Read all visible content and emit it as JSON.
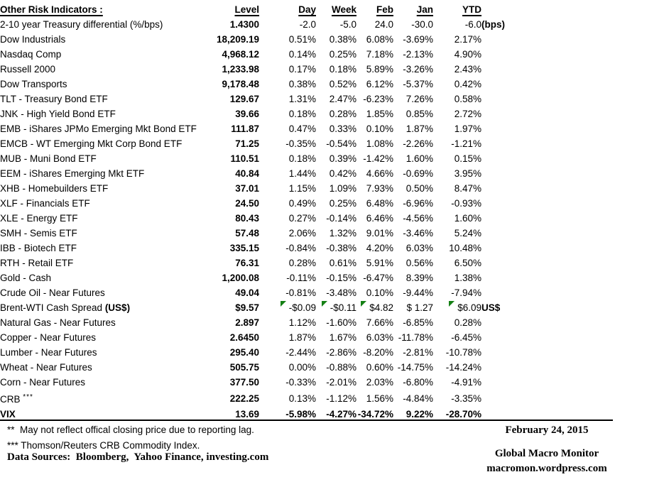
{
  "table": {
    "title": "Other Risk Indicators :",
    "columns": [
      "Level",
      "Day",
      "Week",
      "Feb",
      "Jan",
      "YTD"
    ],
    "rows": [
      {
        "label": "2-10 year Treasury differential (%/bps)",
        "level": "1.4300",
        "day": "-2.0",
        "week": "-5.0",
        "feb": "24.0",
        "jan": "-30.0",
        "ytd": "-6.0",
        "suffix": "(bps)"
      },
      {
        "label": "Dow Industrials",
        "level": "18,209.19",
        "day": "0.51%",
        "week": "0.38%",
        "feb": "6.08%",
        "jan": "-3.69%",
        "ytd": "2.17%"
      },
      {
        "label": "Nasdaq Comp",
        "level": "4,968.12",
        "day": "0.14%",
        "week": "0.25%",
        "feb": "7.18%",
        "jan": "-2.13%",
        "ytd": "4.90%"
      },
      {
        "label": "Russell 2000",
        "level": "1,233.98",
        "day": "0.17%",
        "week": "0.18%",
        "feb": "5.89%",
        "jan": "-3.26%",
        "ytd": "2.43%"
      },
      {
        "label": "Dow Transports",
        "level": "9,178.48",
        "day": "0.38%",
        "week": "0.52%",
        "feb": "6.12%",
        "jan": "-5.37%",
        "ytd": "0.42%"
      },
      {
        "label": "TLT - Treasury Bond ETF",
        "level": "129.67",
        "day": "1.31%",
        "week": "2.47%",
        "feb": "-6.23%",
        "jan": "7.26%",
        "ytd": "0.58%"
      },
      {
        "label": "JNK - High Yield Bond ETF",
        "level": "39.66",
        "day": "0.18%",
        "week": "0.28%",
        "feb": "1.85%",
        "jan": "0.85%",
        "ytd": "2.72%"
      },
      {
        "label": "EMB - iShares JPMo Emerging Mkt Bond ETF",
        "level": "111.87",
        "day": "0.47%",
        "week": "0.33%",
        "feb": "0.10%",
        "jan": "1.87%",
        "ytd": "1.97%"
      },
      {
        "label": "EMCB - WT Emerging Mkt Corp Bond ETF",
        "level": "71.25",
        "day": "-0.35%",
        "week": "-0.54%",
        "feb": "1.08%",
        "jan": "-2.26%",
        "ytd": "-1.21%"
      },
      {
        "label": "MUB - Muni Bond ETF",
        "level": "110.51",
        "day": "0.18%",
        "week": "0.39%",
        "feb": "-1.42%",
        "jan": "1.60%",
        "ytd": "0.15%"
      },
      {
        "label": "EEM - iShares Emerging Mkt ETF",
        "level": "40.84",
        "day": "1.44%",
        "week": "0.42%",
        "feb": "4.66%",
        "jan": "-0.69%",
        "ytd": "3.95%"
      },
      {
        "label": "XHB - Homebuilders ETF",
        "level": "37.01",
        "day": "1.15%",
        "week": "1.09%",
        "feb": "7.93%",
        "jan": "0.50%",
        "ytd": "8.47%"
      },
      {
        "label": "XLF - Financials ETF",
        "level": "24.50",
        "day": "0.49%",
        "week": "0.25%",
        "feb": "6.48%",
        "jan": "-6.96%",
        "ytd": "-0.93%"
      },
      {
        "label": "XLE - Energy ETF",
        "level": "80.43",
        "day": "0.27%",
        "week": "-0.14%",
        "feb": "6.46%",
        "jan": "-4.56%",
        "ytd": "1.60%"
      },
      {
        "label": "SMH - Semis ETF",
        "level": "57.48",
        "day": "2.06%",
        "week": "1.32%",
        "feb": "9.01%",
        "jan": "-3.46%",
        "ytd": "5.24%"
      },
      {
        "label": "IBB - Biotech ETF",
        "level": "335.15",
        "day": "-0.84%",
        "week": "-0.38%",
        "feb": "4.20%",
        "jan": "6.03%",
        "ytd": "10.48%"
      },
      {
        "label": "RTH - Retail ETF",
        "level": "76.31",
        "day": "0.28%",
        "week": "0.61%",
        "feb": "5.91%",
        "jan": "0.56%",
        "ytd": "6.50%"
      },
      {
        "label": "Gold - Cash",
        "level": "1,200.08",
        "day": "-0.11%",
        "week": "-0.15%",
        "feb": "-6.47%",
        "jan": "8.39%",
        "ytd": "1.38%"
      },
      {
        "label": "Crude Oil - Near Futures",
        "level": "49.04",
        "day": "-0.81%",
        "week": "-3.48%",
        "feb": "0.10%",
        "jan": "-9.44%",
        "ytd": "-7.94%"
      },
      {
        "label": "Brent-WTI Cash Spread ",
        "label_bold": "(US$)",
        "level": "$9.57",
        "day": "-$0.09",
        "week": "-$0.11",
        "feb": "$4.82",
        "jan": "$ 1.27",
        "ytd": "$6.09",
        "suffix": "US$",
        "markers": [
          "day",
          "week",
          "feb",
          "ytd"
        ]
      },
      {
        "label": "Natural Gas - Near Futures",
        "level": "2.897",
        "day": "1.12%",
        "week": "-1.60%",
        "feb": "7.66%",
        "jan": "-6.85%",
        "ytd": "0.28%"
      },
      {
        "label": "Copper - Near Futures",
        "level": "2.6450",
        "day": "1.87%",
        "week": "1.67%",
        "feb": "6.03%",
        "jan": "-11.78%",
        "ytd": "-6.45%"
      },
      {
        "label": "Lumber - Near Futures",
        "level": "295.40",
        "day": "-2.44%",
        "week": "-2.86%",
        "feb": "-8.20%",
        "jan": "-2.81%",
        "ytd": "-10.78%"
      },
      {
        "label": "Wheat - Near Futures",
        "level": "505.75",
        "day": "0.00%",
        "week": "-0.88%",
        "feb": "0.60%",
        "jan": "-14.75%",
        "ytd": "-14.24%"
      },
      {
        "label": "Corn - Near Futures",
        "level": "377.50",
        "day": "-0.33%",
        "week": "-2.01%",
        "feb": "2.03%",
        "jan": "-6.80%",
        "ytd": "-4.91%"
      },
      {
        "label": "CRB ",
        "label_sup": "***",
        "level": "222.25",
        "day": "0.13%",
        "week": "-1.12%",
        "feb": "1.56%",
        "jan": "-4.84%",
        "ytd": "-3.35%"
      },
      {
        "label": "VIX",
        "bold": true,
        "level": "13.69",
        "day": "-5.98%",
        "week": "-4.27%",
        "feb": "-34.72%",
        "jan": "9.22%",
        "ytd": "-28.70%"
      }
    ]
  },
  "footnotes": {
    "lag": "**  May not reflect offical closing price due to reporting lag.",
    "crb": "*** Thomson/Reuters CRB Commodity Index.",
    "sources": "Data Sources:  Bloomberg,  Yahoo Finance, investing.com"
  },
  "footer_right": {
    "date": "February 24, 2015",
    "brand": "Global Macro Monitor",
    "url": "macromon.wordpress.com"
  },
  "icons": {
    "comment_marker": "green-corner-triangle"
  },
  "colors": {
    "background": "#ffffff",
    "text": "#000000",
    "marker_green": "#148014"
  }
}
